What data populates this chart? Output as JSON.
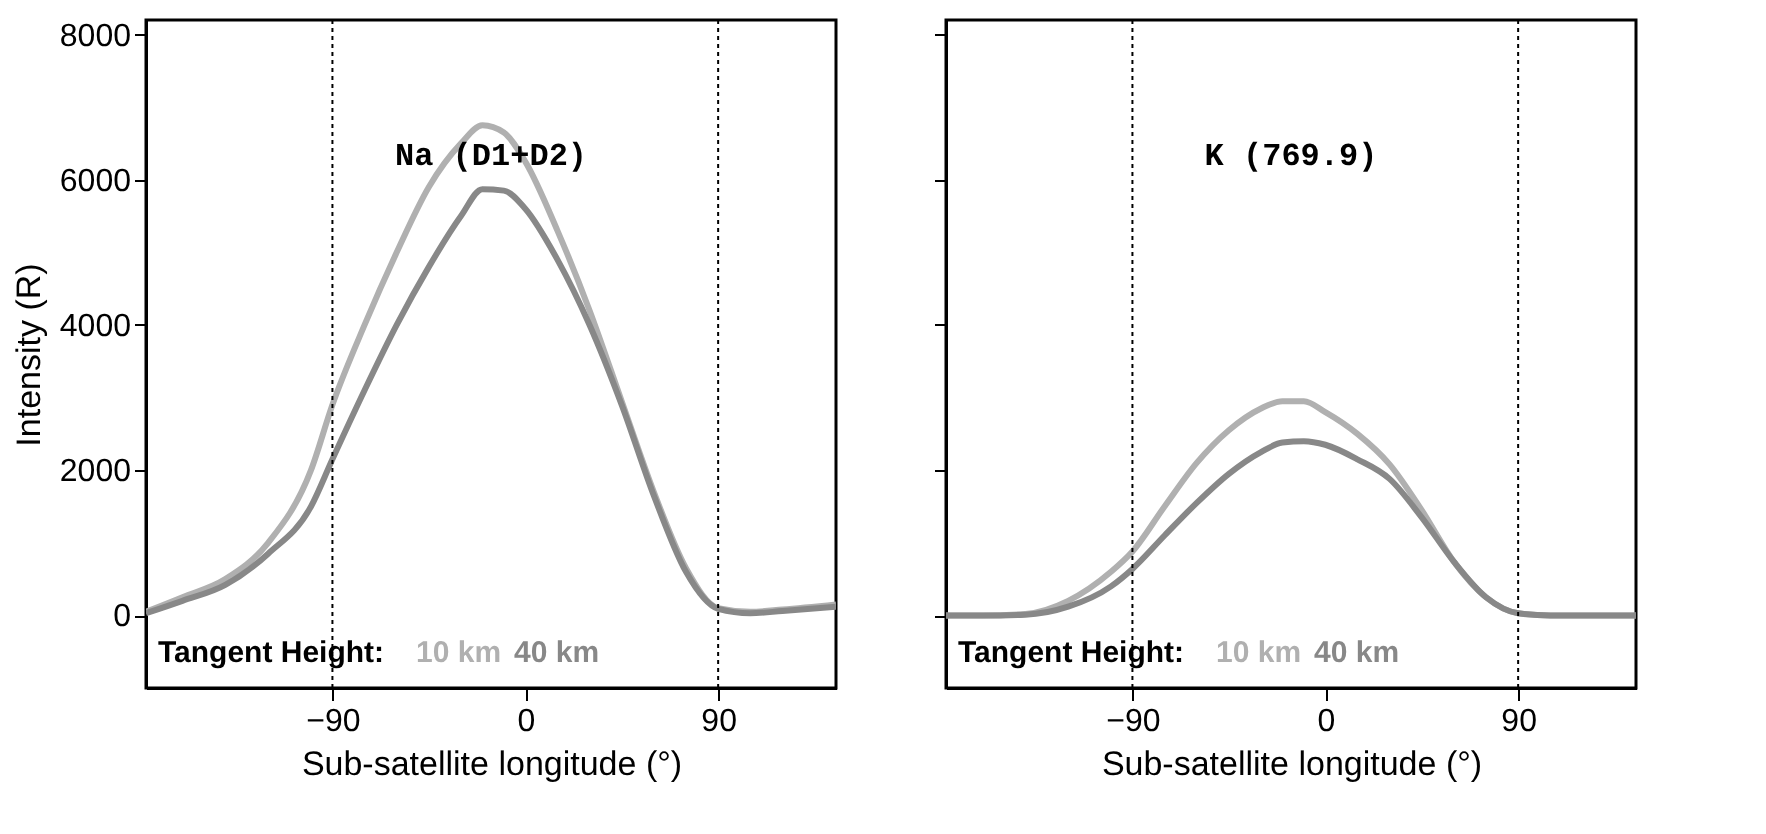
{
  "chart_data": [
    {
      "type": "line",
      "title": "Na (D1+D2)",
      "xlabel": "Sub-satellite longitude (°)",
      "ylabel": "Intensity (R)",
      "legend_title": "Tangent Height:",
      "x": [
        -177,
        -160,
        -140,
        -120,
        -100,
        -90,
        -75,
        -60,
        -45,
        -30,
        -20,
        -10,
        0,
        15,
        30,
        45,
        60,
        75,
        90,
        105,
        120,
        145
      ],
      "series": [
        {
          "name": "10 km",
          "color": "#b0b0b0",
          "values": [
            50,
            250,
            500,
            1000,
            2000,
            2900,
            4000,
            5000,
            5900,
            6500,
            6750,
            6650,
            6250,
            5300,
            4200,
            2950,
            1700,
            650,
            100,
            50,
            80,
            150
          ]
        },
        {
          "name": "40 km",
          "color": "#888888",
          "values": [
            30,
            200,
            420,
            850,
            1500,
            2150,
            3100,
            4000,
            4800,
            5500,
            5870,
            5850,
            5600,
            4900,
            4000,
            2900,
            1650,
            600,
            90,
            30,
            60,
            120
          ]
        }
      ],
      "xlim": [
        -177,
        145
      ],
      "ylim": [
        -1000,
        8200
      ],
      "xticks": [
        -90,
        0,
        90
      ],
      "yticks": [
        0,
        2000,
        4000,
        6000,
        8000
      ],
      "ref_lines": [
        {
          "axis": "x",
          "value": -90,
          "color": "#000000",
          "line_style": "dotted"
        },
        {
          "axis": "x",
          "value": 90,
          "color": "#000000",
          "line_style": "dotted"
        }
      ]
    },
    {
      "type": "line",
      "title": "K (769.9)",
      "xlabel": "Sub-satellite longitude (°)",
      "legend_title": "Tangent Height:",
      "tick_labels": "x",
      "x": [
        -177,
        -160,
        -140,
        -120,
        -100,
        -90,
        -75,
        -60,
        -45,
        -30,
        -20,
        -10,
        0,
        15,
        30,
        45,
        60,
        75,
        90,
        105,
        120,
        145
      ],
      "series": [
        {
          "name": "10 km",
          "color": "#b0b0b0",
          "values": [
            0,
            0,
            20,
            200,
            600,
            880,
            1500,
            2100,
            2550,
            2850,
            2950,
            2950,
            2800,
            2500,
            2080,
            1450,
            740,
            250,
            30,
            0,
            0,
            0
          ]
        },
        {
          "name": "40 km",
          "color": "#888888",
          "values": [
            0,
            0,
            10,
            120,
            400,
            640,
            1100,
            1550,
            1950,
            2250,
            2380,
            2400,
            2350,
            2150,
            1880,
            1350,
            740,
            250,
            30,
            0,
            0,
            0
          ]
        }
      ],
      "xlim": [
        -177,
        145
      ],
      "ylim": [
        -1000,
        8200
      ],
      "xticks": [
        -90,
        0,
        90
      ],
      "yticks": [
        0,
        2000,
        4000,
        6000,
        8000
      ],
      "ref_lines": [
        {
          "axis": "x",
          "value": -90,
          "color": "#000000",
          "line_style": "dotted"
        },
        {
          "axis": "x",
          "value": 90,
          "color": "#000000",
          "line_style": "dotted"
        }
      ]
    }
  ]
}
